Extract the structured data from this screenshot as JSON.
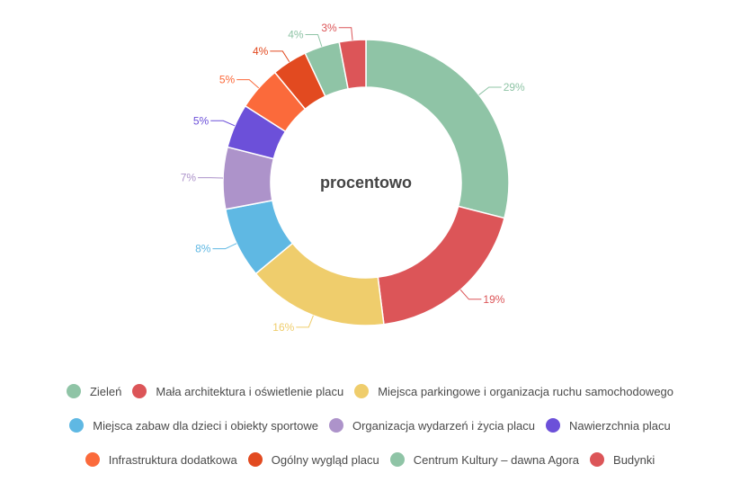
{
  "chart_data": {
    "type": "pie",
    "donut": true,
    "center_label": "procentowo",
    "slices": [
      {
        "name": "Zieleń",
        "value": 29,
        "label": "29%",
        "color": "#8fc4a6"
      },
      {
        "name": "Mała architektura i oświetlenie placu",
        "value": 19,
        "label": "19%",
        "color": "#dc5558"
      },
      {
        "name": "Miejsca parkingowe i organizacja ruchu samochodowego",
        "value": 16,
        "label": "16%",
        "color": "#efcd6c"
      },
      {
        "name": "Miejsca zabaw dla dzieci i obiekty sportowe",
        "value": 8,
        "label": "8%",
        "color": "#5fb8e3"
      },
      {
        "name": "Organizacja wydarzeń i życia placu",
        "value": 7,
        "label": "7%",
        "color": "#ad93ca"
      },
      {
        "name": "Nawierzchnia placu",
        "value": 5,
        "label": "5%",
        "color": "#6c50d9"
      },
      {
        "name": "Infrastruktura dodatkowa",
        "value": 5,
        "label": "5%",
        "color": "#fb6a3b"
      },
      {
        "name": "Ogólny wygląd placu",
        "value": 4,
        "label": "4%",
        "color": "#e24a20"
      },
      {
        "name": "Centrum Kultury – dawna Agora",
        "value": 4,
        "label": "4%",
        "color": "#8fc4a6"
      },
      {
        "name": "Budynki",
        "value": 3,
        "label": "3%",
        "color": "#dc5558"
      }
    ],
    "legend_position": "bottom",
    "legend_rows": [
      [
        0,
        1,
        2
      ],
      [
        3,
        4,
        5
      ],
      [
        6,
        7,
        8,
        9
      ]
    ]
  }
}
